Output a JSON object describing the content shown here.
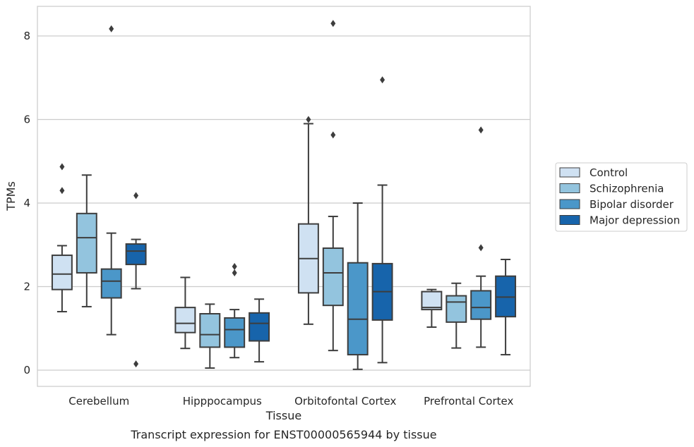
{
  "chart_data": {
    "type": "box",
    "caption": "Transcript expression for ENST00000565944 by tissue",
    "xlabel": "Tissue",
    "ylabel": "TPMs",
    "ylim": [
      -0.35,
      8.7
    ],
    "yticks": [
      0,
      2,
      4,
      6,
      8
    ],
    "grid": "horizontal",
    "legend_placement": "right",
    "categories": [
      "Cerebellum",
      "Hipppocampus",
      "Orbitofontal Cortex",
      "Prefrontal Cortex"
    ],
    "series": [
      {
        "name": "Control",
        "color": "#cfe1f2",
        "boxes": [
          {
            "whislo": 1.4,
            "q1": 1.93,
            "med": 2.3,
            "q3": 2.75,
            "whishi": 2.98,
            "fliers": [
              4.3,
              4.87
            ]
          },
          {
            "whislo": 0.52,
            "q1": 0.9,
            "med": 1.12,
            "q3": 1.5,
            "whishi": 2.22,
            "fliers": []
          },
          {
            "whislo": 1.1,
            "q1": 1.85,
            "med": 2.67,
            "q3": 3.5,
            "whishi": 5.9,
            "fliers": [
              6.0
            ]
          },
          {
            "whislo": 1.03,
            "q1": 1.45,
            "med": 1.5,
            "q3": 1.88,
            "whishi": 1.93,
            "fliers": []
          }
        ]
      },
      {
        "name": "Schizophrenia",
        "color": "#93c4de",
        "boxes": [
          {
            "whislo": 1.52,
            "q1": 2.33,
            "med": 3.17,
            "q3": 3.75,
            "whishi": 4.67,
            "fliers": []
          },
          {
            "whislo": 0.05,
            "q1": 0.55,
            "med": 0.85,
            "q3": 1.35,
            "whishi": 1.58,
            "fliers": []
          },
          {
            "whislo": 0.47,
            "q1": 1.55,
            "med": 2.33,
            "q3": 2.92,
            "whishi": 3.68,
            "fliers": [
              5.63,
              8.3
            ]
          },
          {
            "whislo": 0.53,
            "q1": 1.15,
            "med": 1.63,
            "q3": 1.78,
            "whishi": 2.08,
            "fliers": []
          }
        ]
      },
      {
        "name": "Bipolar disorder",
        "color": "#4b97c9",
        "boxes": [
          {
            "whislo": 0.85,
            "q1": 1.73,
            "med": 2.13,
            "q3": 2.42,
            "whishi": 3.28,
            "fliers": [
              8.17
            ]
          },
          {
            "whislo": 0.3,
            "q1": 0.55,
            "med": 0.97,
            "q3": 1.25,
            "whishi": 1.45,
            "fliers": [
              2.33,
              2.48
            ]
          },
          {
            "whislo": 0.02,
            "q1": 0.37,
            "med": 1.22,
            "q3": 2.57,
            "whishi": 4.0,
            "fliers": []
          },
          {
            "whislo": 0.55,
            "q1": 1.22,
            "med": 1.5,
            "q3": 1.9,
            "whishi": 2.25,
            "fliers": [
              2.93,
              5.75
            ]
          }
        ]
      },
      {
        "name": "Major depression",
        "color": "#1764ab",
        "boxes": [
          {
            "whislo": 1.95,
            "q1": 2.53,
            "med": 2.85,
            "q3": 3.02,
            "whishi": 3.13,
            "fliers": [
              0.15,
              4.18
            ]
          },
          {
            "whislo": 0.2,
            "q1": 0.7,
            "med": 1.12,
            "q3": 1.37,
            "whishi": 1.7,
            "fliers": []
          },
          {
            "whislo": 0.18,
            "q1": 1.2,
            "med": 1.88,
            "q3": 2.55,
            "whishi": 4.43,
            "fliers": [
              6.95
            ]
          },
          {
            "whislo": 0.37,
            "q1": 1.28,
            "med": 1.75,
            "q3": 2.25,
            "whishi": 2.65,
            "fliers": []
          }
        ]
      }
    ]
  }
}
